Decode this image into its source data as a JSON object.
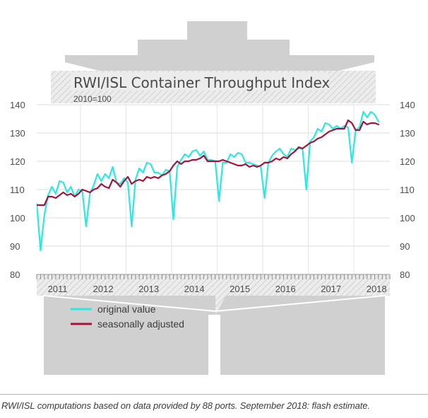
{
  "chart_data": {
    "type": "line",
    "title": "RWI/ISL Container Throughput Index",
    "subtitle": "2010=100",
    "ylim": [
      80,
      140
    ],
    "yticks": [
      80,
      90,
      100,
      110,
      120,
      130,
      140
    ],
    "xlim": [
      0,
      93
    ],
    "year_labels": [
      "2011",
      "2012",
      "2013",
      "2014",
      "2015",
      "2016",
      "2017",
      "2018"
    ],
    "grid": true,
    "legend_position": "bottom-left",
    "x": [
      0,
      1,
      2,
      3,
      4,
      5,
      6,
      7,
      8,
      9,
      10,
      11,
      12,
      13,
      14,
      15,
      16,
      17,
      18,
      19,
      20,
      21,
      22,
      23,
      24,
      25,
      26,
      27,
      28,
      29,
      30,
      31,
      32,
      33,
      34,
      35,
      36,
      37,
      38,
      39,
      40,
      41,
      42,
      43,
      44,
      45,
      46,
      47,
      48,
      49,
      50,
      51,
      52,
      53,
      54,
      55,
      56,
      57,
      58,
      59,
      60,
      61,
      62,
      63,
      64,
      65,
      66,
      67,
      68,
      69,
      70,
      71,
      72,
      73,
      74,
      75,
      76,
      77,
      78,
      79,
      80,
      81,
      82,
      83,
      84,
      85,
      86,
      87,
      88,
      89,
      90
    ],
    "series": [
      {
        "name": "original value",
        "color": "#2be8e0",
        "values": [
          105.0,
          88.5,
          101.0,
          108.0,
          111.0,
          108.5,
          113.0,
          112.5,
          109.0,
          111.0,
          107.5,
          110.0,
          109.5,
          97.0,
          108.5,
          111.5,
          115.5,
          113.0,
          115.5,
          114.0,
          118.0,
          112.5,
          112.0,
          114.0,
          112.5,
          97.0,
          113.5,
          117.5,
          116.0,
          119.5,
          119.0,
          116.0,
          116.0,
          115.0,
          117.0,
          116.5,
          99.5,
          118.0,
          120.5,
          122.5,
          121.5,
          123.5,
          124.0,
          122.0,
          123.5,
          120.5,
          120.5,
          120.0,
          106.0,
          119.5,
          119.5,
          122.5,
          121.5,
          123.0,
          122.5,
          119.5,
          119.5,
          119.0,
          118.5,
          118.0,
          107.0,
          119.5,
          122.0,
          123.5,
          124.5,
          122.5,
          121.5,
          124.5,
          124.0,
          124.5,
          124.5,
          110.0,
          127.0,
          128.5,
          131.5,
          130.5,
          133.5,
          133.0,
          131.5,
          132.5,
          131.5,
          132.5,
          132.0,
          119.5,
          131.0,
          132.0,
          137.5,
          135.5,
          137.5,
          136.5,
          134.0
        ]
      },
      {
        "name": "seasonally adjusted",
        "color": "#a3133a",
        "values": [
          104.5,
          104.5,
          104.5,
          107.5,
          107.5,
          107.0,
          108.0,
          109.0,
          108.0,
          108.5,
          107.5,
          108.5,
          110.0,
          109.5,
          109.0,
          110.0,
          110.5,
          112.0,
          111.0,
          110.5,
          113.5,
          112.5,
          111.0,
          113.0,
          114.5,
          112.0,
          113.0,
          113.5,
          113.0,
          114.5,
          114.0,
          114.5,
          114.0,
          115.0,
          115.5,
          116.5,
          118.5,
          120.0,
          119.0,
          120.0,
          120.0,
          120.5,
          120.5,
          121.0,
          122.0,
          120.0,
          120.0,
          120.0,
          120.0,
          120.5,
          120.0,
          119.5,
          119.0,
          118.5,
          118.5,
          119.0,
          118.0,
          118.5,
          118.0,
          118.5,
          119.5,
          119.5,
          120.0,
          121.0,
          120.5,
          121.5,
          121.0,
          122.5,
          123.5,
          125.0,
          124.5,
          125.5,
          126.5,
          127.0,
          128.0,
          128.5,
          129.5,
          130.5,
          131.0,
          131.5,
          131.5,
          131.5,
          134.5,
          133.5,
          131.0,
          131.0,
          134.0,
          133.0,
          133.5,
          133.5,
          133.0
        ]
      }
    ]
  },
  "footnote": "RWI/ISL computations based on data provided by 88 ports. September 2018: flash estimate."
}
